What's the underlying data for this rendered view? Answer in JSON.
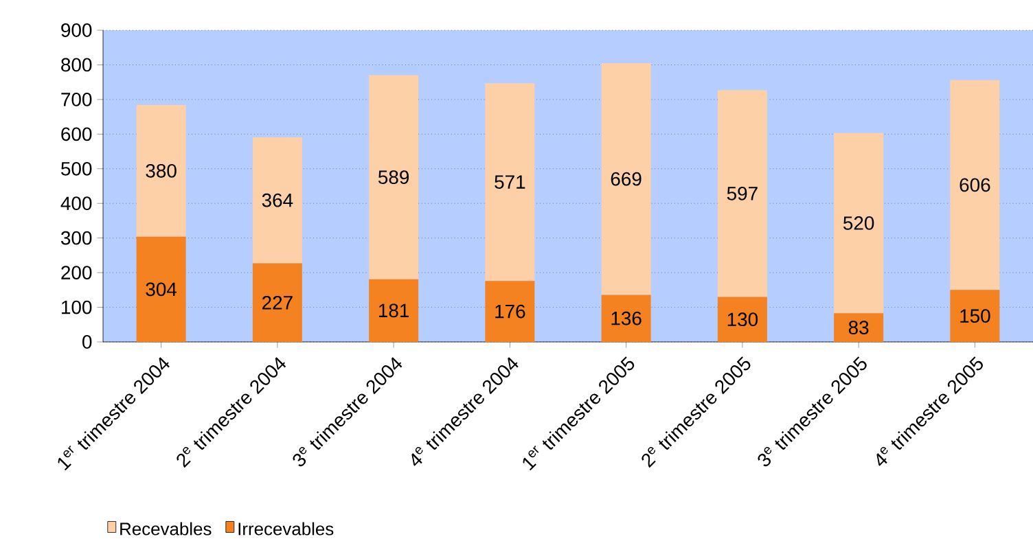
{
  "chart_data": {
    "type": "bar",
    "stacked": true,
    "categories": [
      "1$^{er}$ trimestre 2004",
      "2$^{e}$ trimestre 2004",
      "3$^{e}$ trimestre 2004",
      "4$^{e}$ trimestre 2004",
      "1$^{er}$ trimestre 2005",
      "2$^{e}$ trimestre 2005",
      "3$^{e}$ trimestre 2005",
      "4$^{e}$ trimestre 2005"
    ],
    "series": [
      {
        "name": "Irrecevables",
        "color": "#f58220",
        "values": [
          304,
          227,
          181,
          176,
          136,
          130,
          83,
          150
        ]
      },
      {
        "name": "Recevables",
        "color": "#fdd0a8",
        "values": [
          380,
          364,
          589,
          571,
          669,
          597,
          520,
          606
        ]
      }
    ],
    "ylim": [
      0,
      900
    ],
    "yticks": [
      0,
      100,
      200,
      300,
      400,
      500,
      600,
      700,
      800,
      900
    ],
    "grid": "y",
    "legend": "bottom",
    "data_labels": true
  }
}
